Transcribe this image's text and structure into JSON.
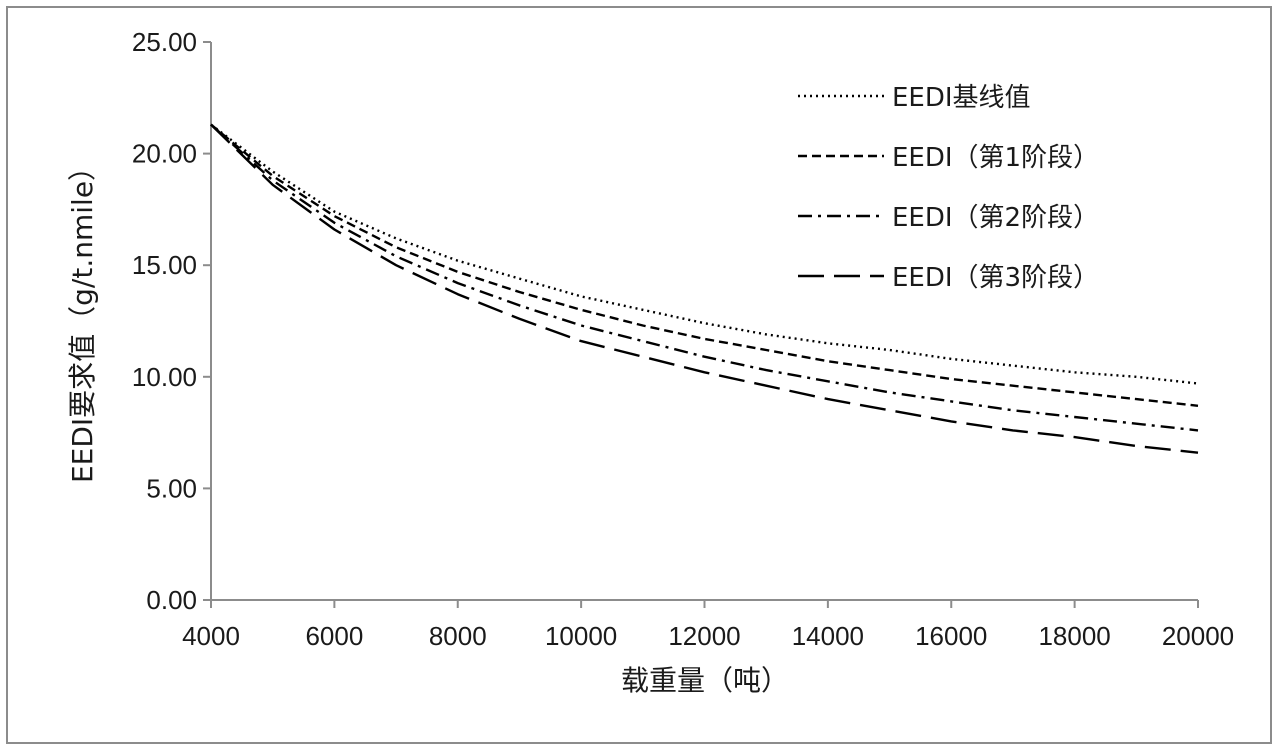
{
  "chart_data": {
    "type": "line",
    "title": "",
    "xlabel": "载重量（吨）",
    "ylabel": "EEDI要求值（g/t.nmile）",
    "xlim": [
      4000,
      20000
    ],
    "ylim": [
      0,
      25
    ],
    "x_ticks": [
      "4000",
      "6000",
      "8000",
      "10000",
      "12000",
      "14000",
      "16000",
      "18000",
      "20000"
    ],
    "y_ticks": [
      "0.00",
      "5.00",
      "10.00",
      "15.00",
      "20.00",
      "25.00"
    ],
    "grid": false,
    "legend_position": "top-right",
    "x": [
      4000,
      5000,
      6000,
      7000,
      8000,
      9000,
      10000,
      11000,
      12000,
      13000,
      14000,
      15000,
      16000,
      17000,
      18000,
      19000,
      20000
    ],
    "series": [
      {
        "name": "EEDI基线值",
        "style": "dotted",
        "values": [
          21.3,
          19.2,
          17.4,
          16.2,
          15.2,
          14.4,
          13.6,
          13.0,
          12.4,
          11.9,
          11.5,
          11.2,
          10.8,
          10.5,
          10.2,
          10.0,
          9.7
        ]
      },
      {
        "name": "EEDI（第1阶段）",
        "style": "dashed",
        "values": [
          21.3,
          19.0,
          17.2,
          15.8,
          14.7,
          13.8,
          13.0,
          12.3,
          11.7,
          11.2,
          10.7,
          10.3,
          9.9,
          9.6,
          9.3,
          9.0,
          8.7
        ]
      },
      {
        "name": "EEDI（第2阶段）",
        "style": "dashdot",
        "values": [
          21.3,
          18.8,
          16.9,
          15.4,
          14.2,
          13.2,
          12.3,
          11.6,
          10.9,
          10.3,
          9.8,
          9.3,
          8.9,
          8.5,
          8.2,
          7.9,
          7.6
        ]
      },
      {
        "name": "EEDI（第3阶段）",
        "style": "longdash",
        "values": [
          21.3,
          18.6,
          16.6,
          15.0,
          13.7,
          12.6,
          11.6,
          10.9,
          10.2,
          9.6,
          9.0,
          8.5,
          8.0,
          7.6,
          7.3,
          6.9,
          6.6
        ]
      }
    ]
  }
}
